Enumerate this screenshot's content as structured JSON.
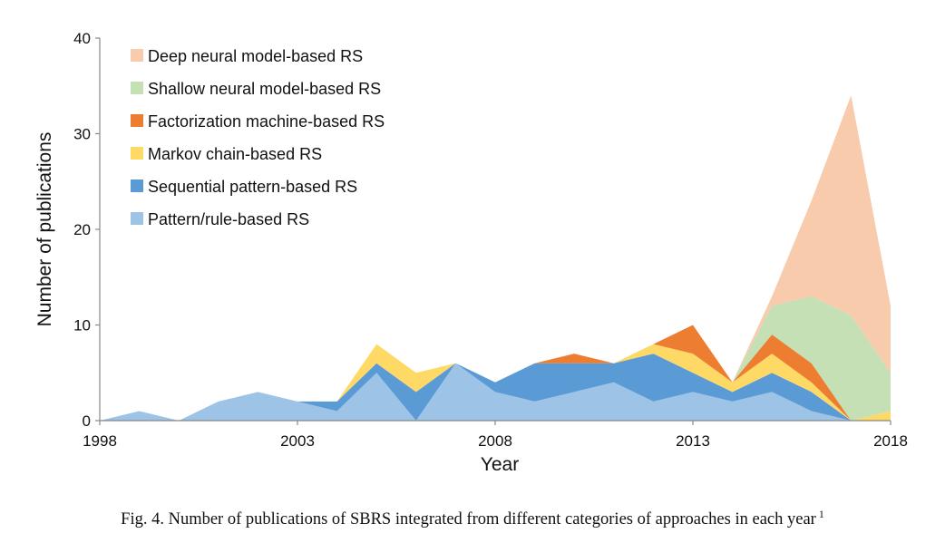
{
  "chart_data": {
    "type": "area",
    "stacked": true,
    "x": [
      1998,
      1999,
      2000,
      2001,
      2002,
      2003,
      2004,
      2005,
      2006,
      2007,
      2008,
      2009,
      2010,
      2011,
      2012,
      2013,
      2014,
      2015,
      2016,
      2017,
      2018
    ],
    "series": [
      {
        "name": "Pattern/rule-based RS",
        "color": "#9dc3e6",
        "values": [
          0,
          1,
          0,
          2,
          3,
          2,
          1,
          5,
          0,
          6,
          3,
          2,
          3,
          4,
          2,
          3,
          2,
          3,
          1,
          0,
          0
        ]
      },
      {
        "name": "Sequential pattern-based RS",
        "color": "#5b9bd5",
        "values": [
          0,
          0,
          0,
          0,
          0,
          0,
          1,
          1,
          3,
          0,
          1,
          4,
          3,
          2,
          5,
          2,
          1,
          2,
          2,
          0,
          0
        ]
      },
      {
        "name": "Markov chain-based RS",
        "color": "#ffd966",
        "values": [
          0,
          0,
          0,
          0,
          0,
          0,
          0,
          2,
          2,
          0,
          0,
          0,
          0,
          0,
          1,
          2,
          1,
          2,
          1,
          0,
          1
        ]
      },
      {
        "name": "Factorization machine-based RS",
        "color": "#ed7d31",
        "values": [
          0,
          0,
          0,
          0,
          0,
          0,
          0,
          0,
          0,
          0,
          0,
          0,
          1,
          0,
          0,
          3,
          0,
          2,
          2,
          0,
          0
        ]
      },
      {
        "name": "Shallow neural model-based RS",
        "color": "#c5e0b4",
        "values": [
          0,
          0,
          0,
          0,
          0,
          0,
          0,
          0,
          0,
          0,
          0,
          0,
          0,
          0,
          0,
          0,
          0,
          3,
          7,
          11,
          4
        ]
      },
      {
        "name": "Deep neural model-based RS",
        "color": "#f8cbad",
        "values": [
          0,
          0,
          0,
          0,
          0,
          0,
          0,
          0,
          0,
          0,
          0,
          0,
          0,
          0,
          0,
          0,
          0,
          1,
          10,
          23,
          7
        ]
      }
    ],
    "title": "",
    "xlabel": "Year",
    "ylabel": "Number of publications",
    "xticks": [
      "1998",
      "2003",
      "2008",
      "2013",
      "2018"
    ],
    "xtick_values": [
      1998,
      2003,
      2008,
      2013,
      2018
    ],
    "yticks": [
      "0",
      "10",
      "20",
      "30",
      "40"
    ],
    "ytick_values": [
      0,
      10,
      20,
      30,
      40
    ],
    "xlim": [
      1998,
      2018
    ],
    "ylim": [
      0,
      40
    ],
    "grid": false,
    "legend_position": "top-left",
    "legend_order": [
      "Deep neural model-based RS",
      "Shallow neural model-based RS",
      "Factorization machine-based RS",
      "Markov chain-based RS",
      "Sequential pattern-based RS",
      "Pattern/rule-based RS"
    ]
  },
  "caption": {
    "text": "Fig. 4.  Number of publications of SBRS integrated from different categories of approaches in each year",
    "footnote": "1"
  }
}
